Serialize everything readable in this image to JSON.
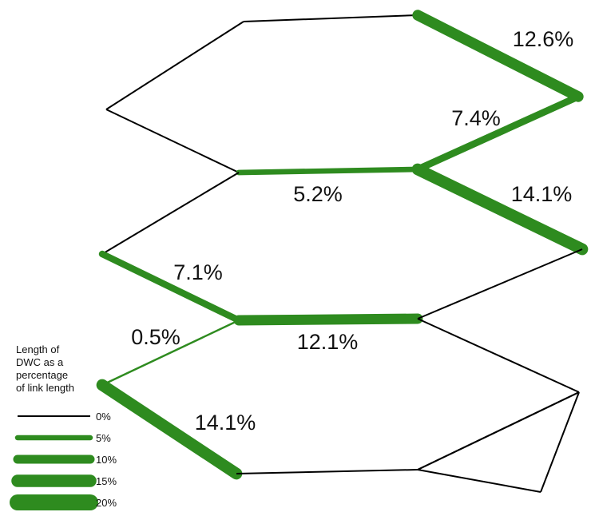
{
  "colors": {
    "dwc": "#2e8b1f",
    "road": "#000000",
    "text": "#111111"
  },
  "links": [
    {
      "id": "top-left-upper",
      "dwc_percent": 0
    },
    {
      "id": "top-left-lower",
      "dwc_percent": 0
    },
    {
      "id": "top-edge",
      "dwc_percent": 0
    },
    {
      "id": "top-right-upper",
      "dwc_percent": 12.6,
      "label": "12.6%"
    },
    {
      "id": "top-right-lower",
      "dwc_percent": 7.4,
      "label": "7.4%"
    },
    {
      "id": "mid-upper-horizontal",
      "dwc_percent": 5.2,
      "label": "5.2%"
    },
    {
      "id": "right-diagonal-upper",
      "dwc_percent": 14.1,
      "label": "14.1%"
    },
    {
      "id": "left-diagonal-upper",
      "dwc_percent": 0
    },
    {
      "id": "left-diagonal-middle",
      "dwc_percent": 7.1,
      "label": "7.1%"
    },
    {
      "id": "mid-lower-horizontal",
      "dwc_percent": 12.1,
      "label": "12.1%"
    },
    {
      "id": "right-diagonal-middle",
      "dwc_percent": 0
    },
    {
      "id": "short-connector",
      "dwc_percent": 0.5,
      "label": "0.5%"
    },
    {
      "id": "left-diagonal-lower",
      "dwc_percent": 14.1,
      "label": "14.1%"
    },
    {
      "id": "right-lower-a",
      "dwc_percent": 0
    },
    {
      "id": "right-lower-b",
      "dwc_percent": 0
    },
    {
      "id": "bottom-edge",
      "dwc_percent": 0
    },
    {
      "id": "bottom-right-a",
      "dwc_percent": 0
    },
    {
      "id": "bottom-right-b",
      "dwc_percent": 0
    },
    {
      "id": "bottom-right-c",
      "dwc_percent": 0
    }
  ],
  "legend": {
    "title_lines": [
      "Length of",
      "DWC as a",
      "percentage",
      "of link length"
    ],
    "items": [
      {
        "label": "0%",
        "dwc_percent": 0
      },
      {
        "label": "5%",
        "dwc_percent": 5
      },
      {
        "label": "10%",
        "dwc_percent": 10
      },
      {
        "label": "15%",
        "dwc_percent": 15
      },
      {
        "label": "20%",
        "dwc_percent": 20
      }
    ]
  }
}
